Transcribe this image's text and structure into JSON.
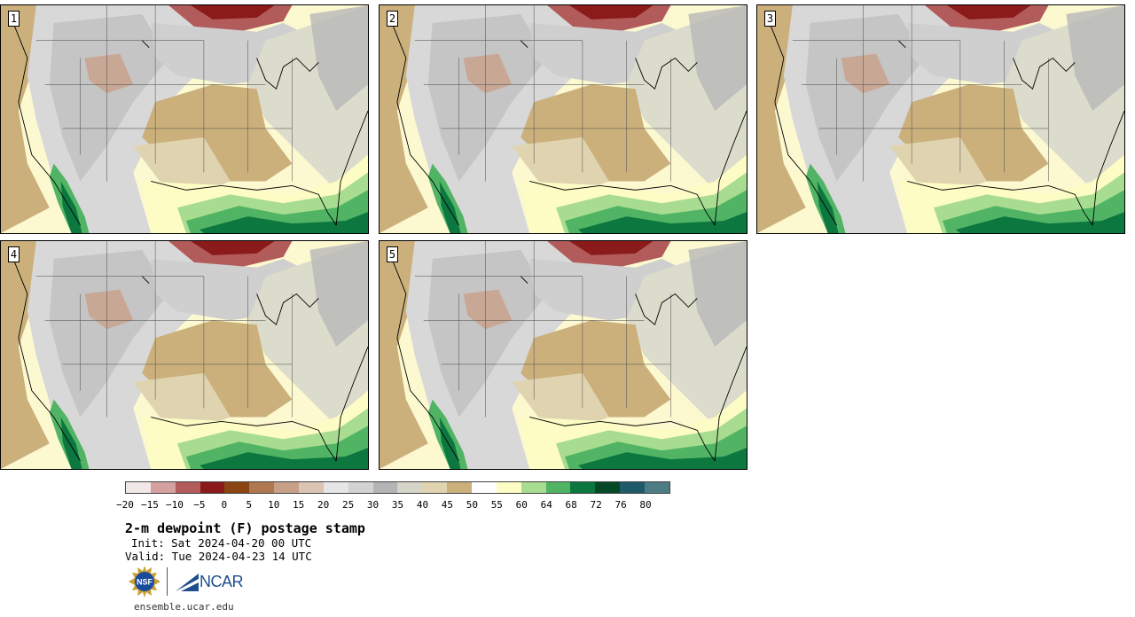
{
  "panels": [
    {
      "label": "1"
    },
    {
      "label": "2"
    },
    {
      "label": "3"
    },
    {
      "label": "4"
    },
    {
      "label": "5"
    }
  ],
  "colorbar": {
    "colors": [
      "#f3e8e8",
      "#d4a0a0",
      "#b25b5b",
      "#8b1a1a",
      "#8b4513",
      "#b07850",
      "#c8a088",
      "#dcc4b4",
      "#e6e6e6",
      "#d2d2d2",
      "#b4b4b4",
      "#d4d4c8",
      "#e0d4b0",
      "#cbb07c",
      "#ffffff",
      "#fcfcc4",
      "#a8dc90",
      "#50b464",
      "#0c7840",
      "#044828",
      "#1e5a6a",
      "#4e7c84"
    ],
    "ticks": [
      "−20",
      "−15",
      "−10",
      "−5",
      "0",
      "5",
      "10",
      "15",
      "20",
      "25",
      "30",
      "35",
      "40",
      "45",
      "50",
      "55",
      "60",
      "64",
      "68",
      "72",
      "76",
      "80"
    ]
  },
  "title": "2-m dewpoint (F) postage stamp",
  "init": "Init: Sat 2024-04-20 00 UTC",
  "valid": "Valid: Tue 2024-04-23 14 UTC",
  "logos": {
    "nsf": "NSF",
    "ncar": "NCAR"
  },
  "site": "ensemble.ucar.edu"
}
